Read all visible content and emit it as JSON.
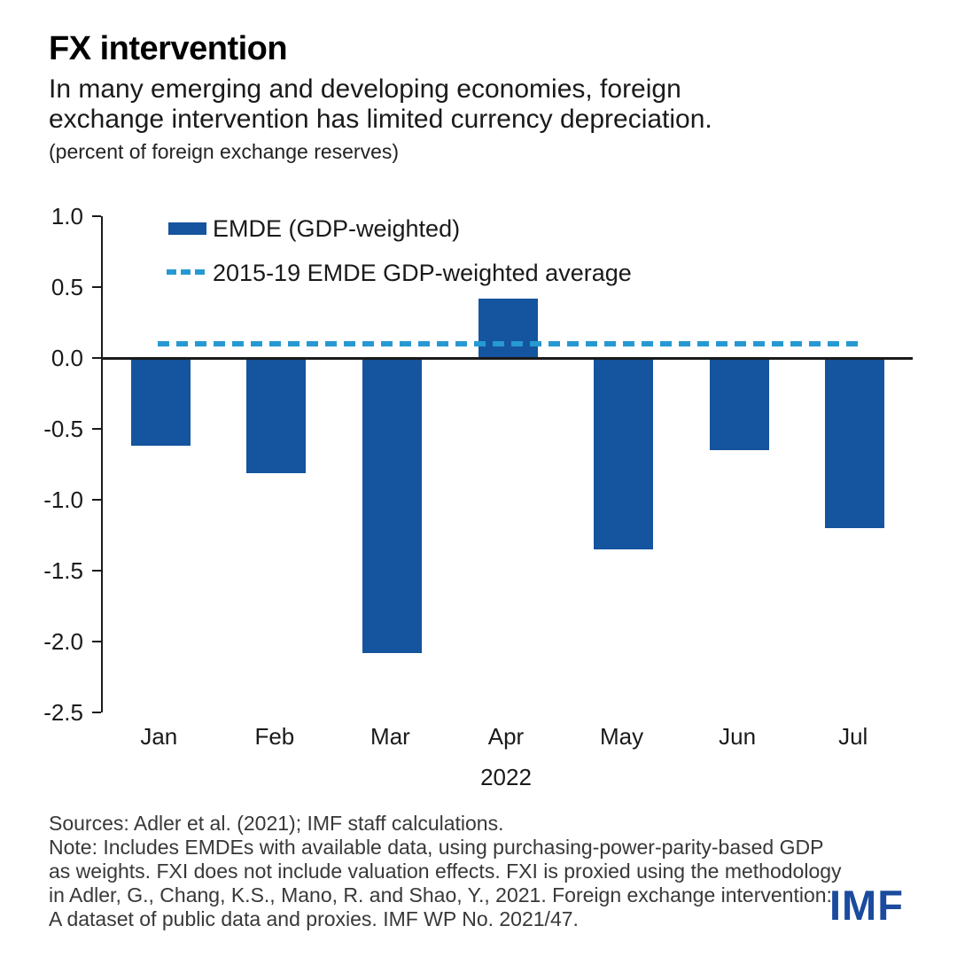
{
  "header": {
    "title": "FX intervention",
    "subtitle_line1": "In many emerging and developing economies, foreign",
    "subtitle_line2": "exchange intervention has limited currency depreciation.",
    "unit_note": "(percent of foreign exchange reserves)"
  },
  "chart_data": {
    "type": "bar",
    "title": "FX intervention",
    "categories": [
      "Jan",
      "Feb",
      "Mar",
      "Apr",
      "May",
      "Jun",
      "Jul"
    ],
    "x_axis_label": "2022",
    "ylabel": "percent of foreign exchange reserves",
    "ylim": [
      -2.5,
      1.0
    ],
    "ytick_labels": [
      "1.0",
      "0.5",
      "0.0",
      "-0.5",
      "-1.0",
      "-1.5",
      "-2.0",
      "-2.5"
    ],
    "grid": false,
    "legend_position": "top-left-inside",
    "series": [
      {
        "name": "EMDE (GDP-weighted)",
        "type": "bar",
        "color": "#15549E",
        "values": [
          -0.62,
          -0.81,
          -2.08,
          0.42,
          -1.35,
          -0.65,
          -1.2
        ]
      }
    ],
    "reference_line": {
      "name": "2015-19 EMDE GDP-weighted average",
      "value": 0.1,
      "color": "#2699D2",
      "style": "dashed"
    }
  },
  "footer": {
    "sources": "Sources: Adler et al. (2021); IMF staff calculations.",
    "note_lines": [
      "Note: Includes EMDEs with available data, using purchasing-power-parity-based GDP",
      "as weights. FXI does not include valuation effects. FXI is proxied using the methodology",
      "in Adler, G., Chang, K.S., Mano, R. and Shao, Y., 2021. Foreign exchange intervention:",
      "A dataset of public data and proxies. IMF WP No. 2021/47."
    ],
    "logo": "IMF",
    "logo_color": "#1A4B9E"
  }
}
